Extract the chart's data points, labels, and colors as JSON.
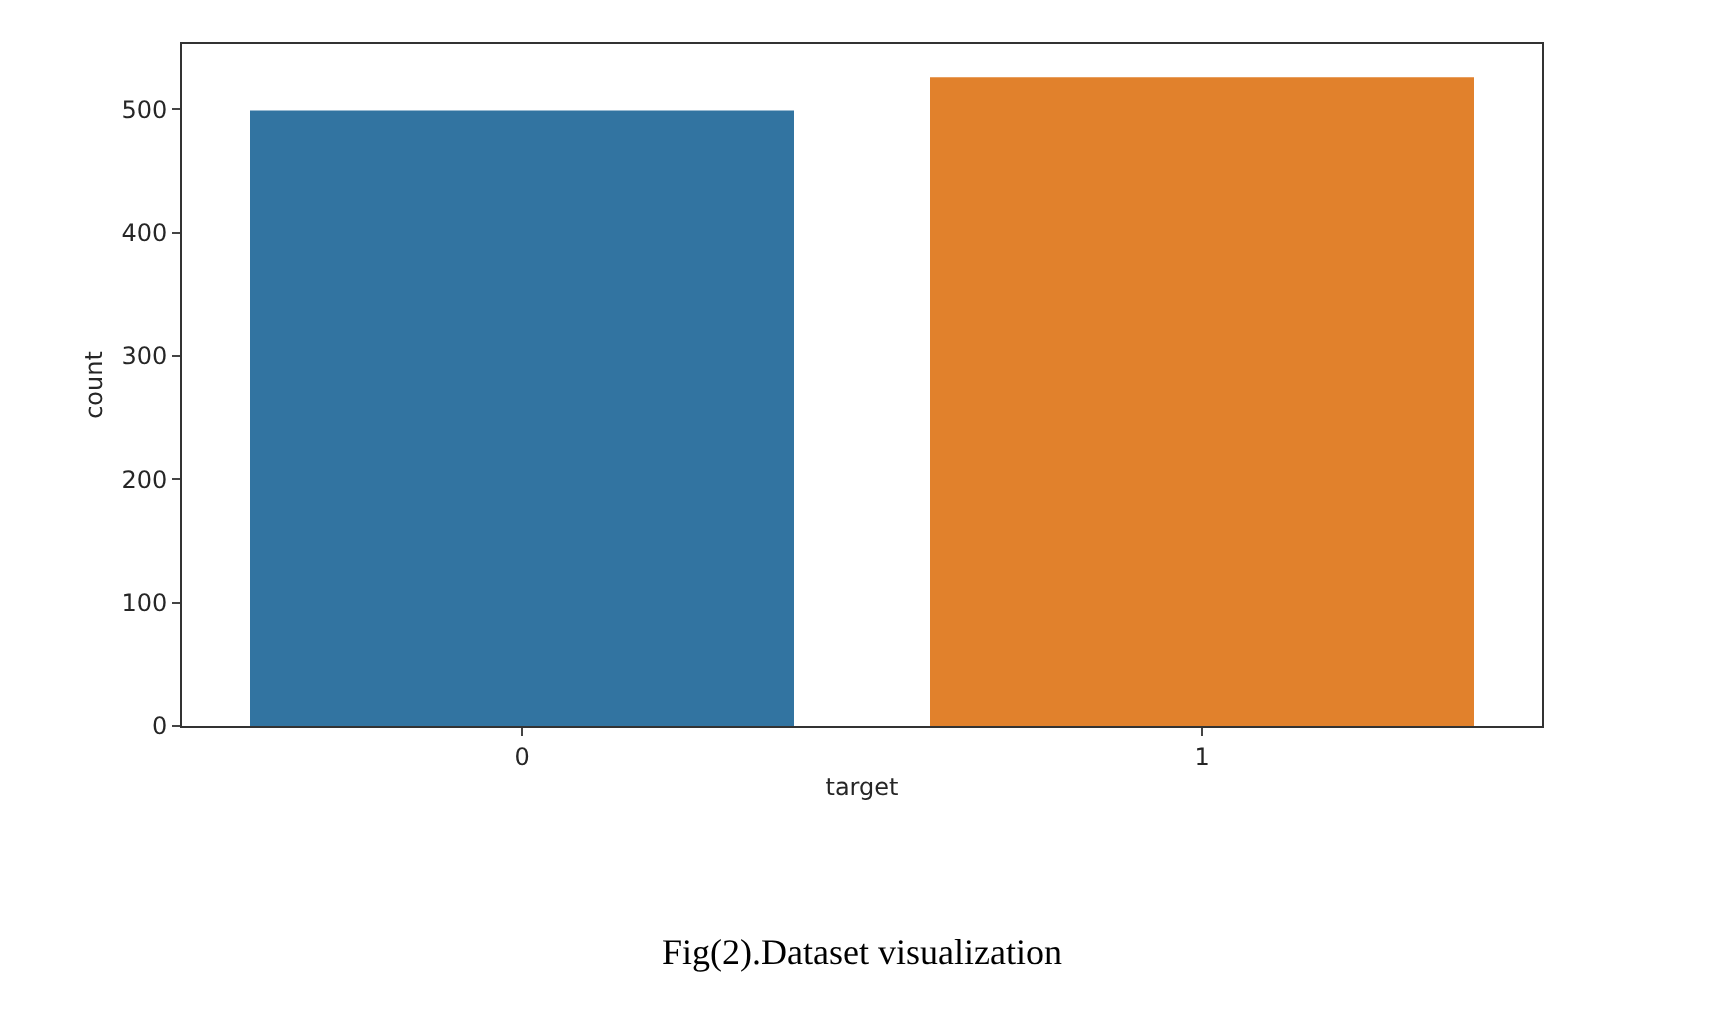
{
  "chart_data": {
    "type": "bar",
    "categories": [
      "0",
      "1"
    ],
    "values": [
      499,
      526
    ],
    "colors": [
      "#3274a1",
      "#e1812c"
    ],
    "xlabel": "target",
    "ylabel": "count",
    "ylim": [
      0,
      553
    ],
    "yticks": [
      0,
      100,
      200,
      300,
      400,
      500
    ],
    "legend": false,
    "annotations": [
      "Fig(2).Dataset visualization"
    ]
  }
}
